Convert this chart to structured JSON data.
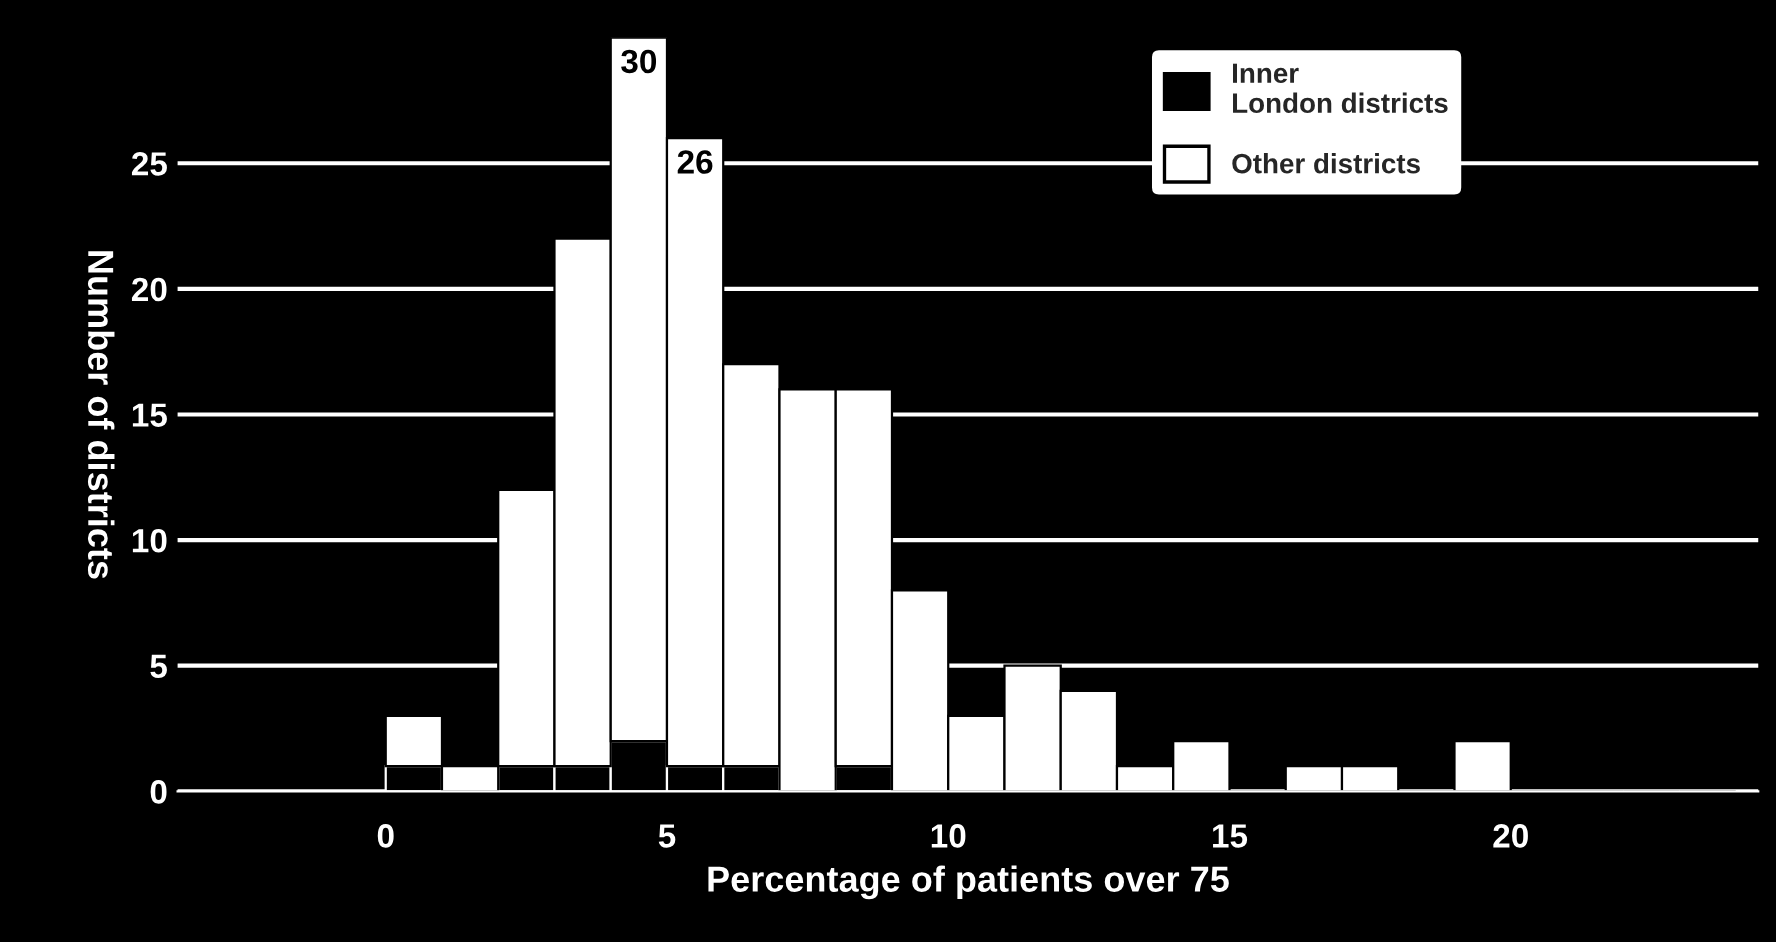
{
  "chart_data": {
    "type": "bar",
    "stacked": true,
    "x": [
      0.5,
      1.5,
      2.5,
      3.5,
      4.5,
      5.5,
      6.5,
      7.5,
      8.5,
      9.5,
      10.5,
      11.5,
      12.5,
      13.5,
      14.5,
      15.5,
      16.5,
      17.5,
      18.5,
      19.5,
      20.5,
      21.5,
      22.5,
      23.5
    ],
    "series": [
      {
        "name": "Inner\nLondon districts",
        "color": "#000000",
        "values": [
          1,
          0,
          1,
          1,
          2,
          1,
          1,
          0,
          1,
          0,
          0,
          0,
          0,
          0,
          0,
          0,
          0,
          0,
          0,
          0,
          0,
          0,
          0,
          0
        ]
      },
      {
        "name": "Other districts",
        "color": "#ffffff",
        "values": [
          2,
          1,
          11,
          21,
          28,
          25,
          16,
          16,
          15,
          8,
          3,
          5,
          4,
          1,
          2,
          0,
          1,
          1,
          0,
          2,
          0,
          0,
          0,
          0
        ]
      }
    ],
    "xlabel": "Percentage of patients over 75",
    "ylabel": "Number of districts",
    "xlim": [
      -3.7,
      24.4
    ],
    "ylim": [
      0,
      30
    ],
    "xticks": [
      0,
      5,
      10,
      15,
      20
    ],
    "yticks": [
      0,
      5,
      10,
      15,
      20,
      25
    ],
    "annotations": [
      {
        "text": "30",
        "x": 4.5,
        "y": 30
      },
      {
        "text": "26",
        "x": 5.5,
        "y": 26
      }
    ],
    "grid": "y",
    "legend": "top right"
  }
}
